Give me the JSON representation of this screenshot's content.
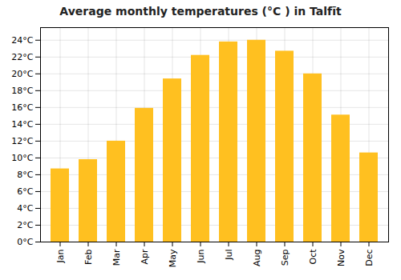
{
  "chart_data": {
    "type": "bar",
    "title": "Average monthly temperatures (°C ) in Talfīt",
    "categories": [
      "Jan",
      "Feb",
      "Mar",
      "Apr",
      "May",
      "Jun",
      "Jul",
      "Aug",
      "Sep",
      "Oct",
      "Nov",
      "Dec"
    ],
    "values": [
      8.7,
      9.8,
      12.0,
      15.9,
      19.4,
      22.2,
      23.8,
      24.0,
      22.7,
      20.0,
      15.1,
      10.6
    ],
    "color": "#FFC020",
    "ylim": [
      0,
      25.5
    ],
    "yticks": [
      {
        "value": 0,
        "label": "0°C"
      },
      {
        "value": 2,
        "label": "2°C"
      },
      {
        "value": 4,
        "label": "4°C"
      },
      {
        "value": 6,
        "label": "6°C"
      },
      {
        "value": 8,
        "label": "8°C"
      },
      {
        "value": 10,
        "label": "10°C"
      },
      {
        "value": 12,
        "label": "12°C"
      },
      {
        "value": 14,
        "label": "14°C"
      },
      {
        "value": 16,
        "label": "16°C"
      },
      {
        "value": 18,
        "label": "18°C"
      },
      {
        "value": 20,
        "label": "20°C"
      },
      {
        "value": 22,
        "label": "22°C"
      },
      {
        "value": 24,
        "label": "24°C"
      }
    ],
    "grid": true
  }
}
